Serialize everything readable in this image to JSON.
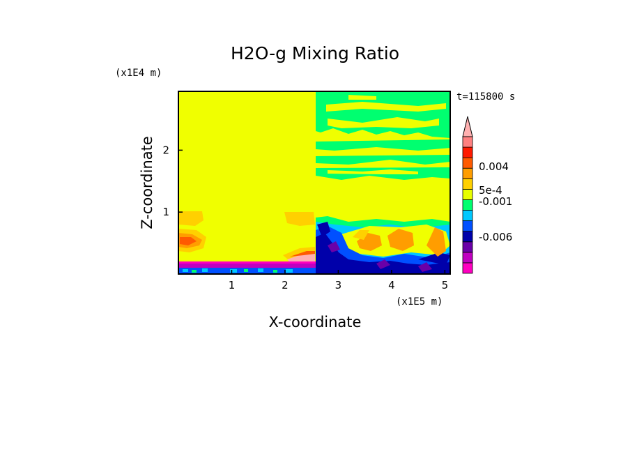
{
  "chart_data": {
    "type": "heatmap",
    "title": "H2O-g Mixing Ratio",
    "xlabel": "X-coordinate",
    "ylabel": "Z-coordinate",
    "x_unit": "(x1E5 m)",
    "y_unit": "(x1E4 m)",
    "time_label": "t=115800 s",
    "xlim": [
      0,
      5.1
    ],
    "ylim": [
      0,
      2.95
    ],
    "x_ticks": [
      "1",
      "2",
      "3",
      "4",
      "5"
    ],
    "y_ticks": [
      "1",
      "2"
    ],
    "colorbar": {
      "labels": [
        "0.004",
        "5e-4",
        "-0.001",
        "-0.006"
      ],
      "colors": [
        "#ff00c0",
        "#c000c0",
        "#6a00a8",
        "#0000aa",
        "#0050ff",
        "#00c8ff",
        "#00ff70",
        "#e8ff00",
        "#ffd000",
        "#ff9d00",
        "#ff5a00",
        "#ff1a00",
        "#ff8080"
      ],
      "extend": "max"
    },
    "regions": {
      "background_left": "#f0ff00",
      "background_right": "#f0ff00",
      "moist_upper_band": "#00ff70",
      "dry_lower_layer": "#0000aa",
      "peak_values": "#ff9d00",
      "surface_minimum": "#ff00c0"
    }
  }
}
